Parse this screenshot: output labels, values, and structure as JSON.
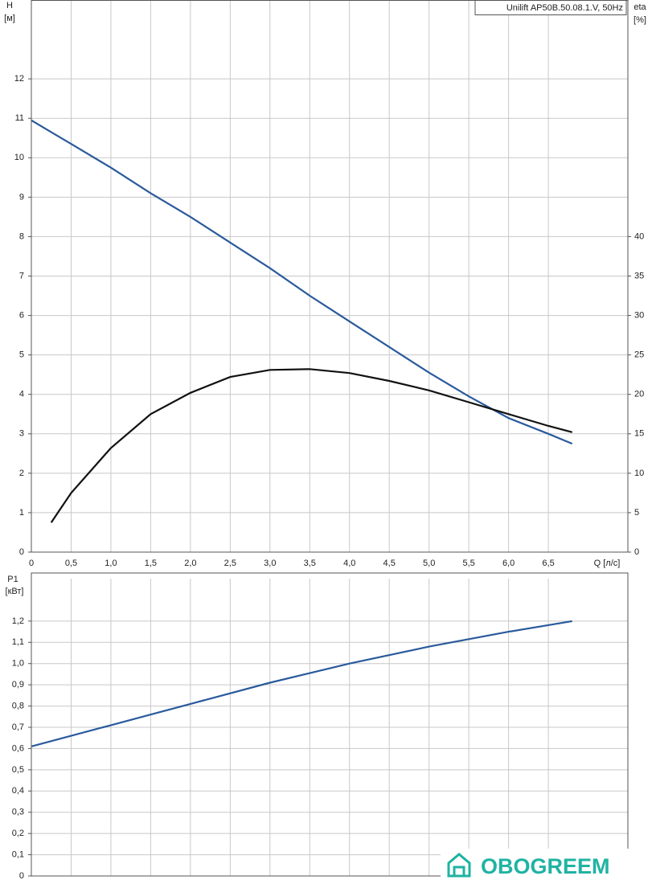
{
  "chart_data": [
    {
      "type": "line",
      "title": "Unilift AP50B.50.08.1.V, 50Hz",
      "ylabel": "H",
      "yunit": "[м]",
      "y2label": "eta",
      "y2unit": "[%]",
      "xlabel": "Q [л/с]",
      "x": [
        0,
        0.25,
        0.5,
        1,
        1.5,
        2,
        2.5,
        3,
        3.5,
        4,
        4.5,
        5,
        5.5,
        6,
        6.5,
        6.8
      ],
      "series": [
        {
          "name": "H",
          "color": "#2a5a9c",
          "values": [
            10.95,
            10.65,
            10.35,
            9.75,
            9.1,
            8.5,
            7.85,
            7.2,
            6.5,
            5.85,
            5.2,
            4.55,
            3.95,
            3.4,
            3.0,
            2.75
          ]
        },
        {
          "name": "eta",
          "color": "#111111",
          "axis": "y2",
          "values": [
            null,
            3.75,
            7.5,
            13.2,
            17.5,
            20.2,
            22.2,
            23.1,
            23.2,
            22.7,
            21.7,
            20.5,
            19,
            17.5,
            16,
            15.2
          ]
        }
      ],
      "xlim": [
        0,
        7.5
      ],
      "xticks": [
        0,
        {
          "value": 0.5,
          "label": "0,5"
        },
        {
          "value": 1,
          "label": "1,0"
        },
        {
          "value": 1.5,
          "label": "1,5"
        },
        {
          "value": 2,
          "label": "2,0"
        },
        {
          "value": 2.5,
          "label": "2,5"
        },
        {
          "value": 3,
          "label": "3,0"
        },
        {
          "value": 3.5,
          "label": "3,5"
        },
        {
          "value": 4,
          "label": "4,0"
        },
        {
          "value": 4.5,
          "label": "4,5"
        },
        {
          "value": 5,
          "label": "5,0"
        },
        {
          "value": 5.5,
          "label": "5,5"
        },
        {
          "value": 6,
          "label": "6,0"
        },
        {
          "value": 6.5,
          "label": "6,5"
        }
      ],
      "ylim": [
        0,
        14
      ],
      "yticks": [
        0,
        1,
        2,
        3,
        4,
        5,
        6,
        7,
        8,
        9,
        10,
        11,
        12
      ],
      "y2lim": [
        0,
        70
      ],
      "y2ticks": [
        0,
        5,
        10,
        15,
        20,
        25,
        30,
        35,
        40
      ],
      "grid": true
    },
    {
      "type": "line",
      "ylabel": "P1",
      "yunit": "[кВт]",
      "x": [
        0,
        1,
        2,
        3,
        4,
        5,
        6,
        6.8
      ],
      "series": [
        {
          "name": "P1",
          "color": "#2a5a9c",
          "values": [
            0.61,
            0.71,
            0.81,
            0.91,
            1.0,
            1.08,
            1.15,
            1.2
          ]
        }
      ],
      "xlim": [
        0,
        7.5
      ],
      "ylim": [
        0,
        1.4
      ],
      "yticks": [
        0,
        {
          "value": 0.1,
          "label": "0,1"
        },
        {
          "value": 0.2,
          "label": "0,2"
        },
        {
          "value": 0.3,
          "label": "0,3"
        },
        {
          "value": 0.4,
          "label": "0,4"
        },
        {
          "value": 0.5,
          "label": "0,5"
        },
        {
          "value": 0.6,
          "label": "0,6"
        },
        {
          "value": 0.7,
          "label": "0,7"
        },
        {
          "value": 0.8,
          "label": "0,8"
        },
        {
          "value": 0.9,
          "label": "0,9"
        },
        {
          "value": 1.0,
          "label": "1,0"
        },
        {
          "value": 1.1,
          "label": "1,1"
        },
        {
          "value": 1.2,
          "label": "1,2"
        }
      ],
      "grid": true
    }
  ],
  "watermark": "OBOGREEM"
}
